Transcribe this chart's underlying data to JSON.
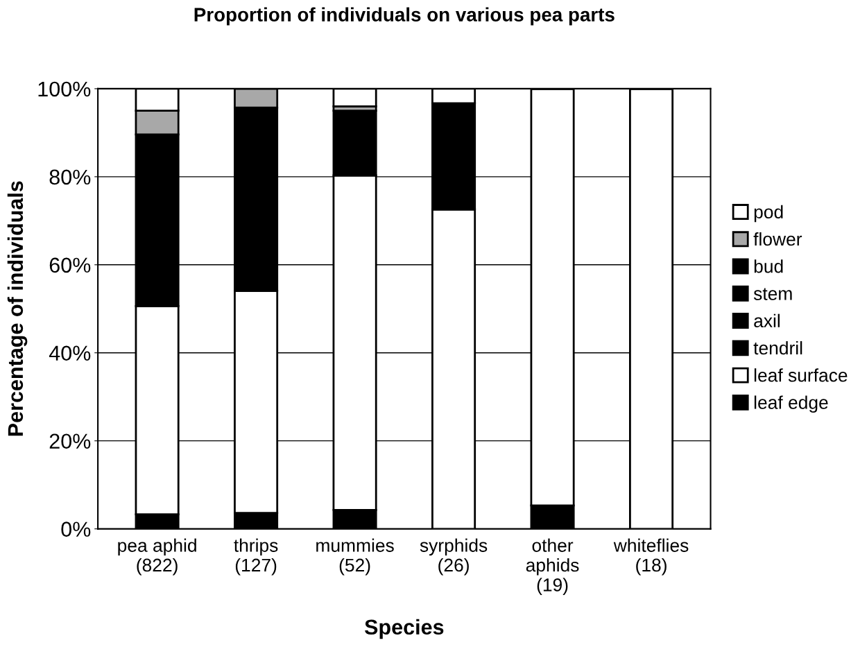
{
  "chart_data": {
    "type": "bar",
    "stacked": true,
    "title": "Proportion of individuals on various pea parts",
    "xlabel": "Species",
    "ylabel": "Percentage of individuals",
    "categories": [
      "pea aphid\n(822)",
      "thrips\n(127)",
      "mummies\n(52)",
      "syrphids\n(26)",
      "other\naphids\n(19)",
      "whiteflies\n(18)"
    ],
    "series": [
      {
        "name": "leaf edge",
        "color": "#000000",
        "values": [
          3.3,
          3.6,
          4.3,
          0,
          5.3,
          0
        ]
      },
      {
        "name": "leaf surface",
        "color": "#ffffff",
        "values": [
          47.3,
          50.5,
          76,
          72.6,
          94.7,
          100
        ]
      },
      {
        "name": "tendril",
        "color": "#000000",
        "values": [
          0,
          0,
          0,
          0,
          0,
          0
        ]
      },
      {
        "name": "axil",
        "color": "#000000",
        "values": [
          0,
          0,
          0,
          0,
          0,
          0
        ]
      },
      {
        "name": "stem",
        "color": "#000000",
        "values": [
          0,
          0,
          0,
          0,
          0,
          0
        ]
      },
      {
        "name": "bud",
        "color": "#000000",
        "values": [
          39,
          41.6,
          14.7,
          24.1,
          0,
          0
        ]
      },
      {
        "name": "flower",
        "color": "#a8a8a8",
        "values": [
          5.4,
          4.3,
          1,
          0,
          0,
          0
        ]
      },
      {
        "name": "pod",
        "color": "#ffffff",
        "values": [
          5,
          0,
          4,
          3.3,
          0,
          0
        ]
      }
    ],
    "ylim": [
      0,
      100
    ],
    "yticks": [
      {
        "value": 0,
        "label": "0%"
      },
      {
        "value": 20,
        "label": "20%"
      },
      {
        "value": 40,
        "label": "40%"
      },
      {
        "value": 60,
        "label": "60%"
      },
      {
        "value": 80,
        "label": "80%"
      },
      {
        "value": 100,
        "label": "100%"
      }
    ],
    "grid": "y",
    "legend": "right"
  }
}
